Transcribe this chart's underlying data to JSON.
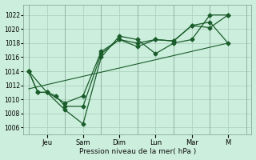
{
  "xlabel": "Pression niveau de la mer( hPa )",
  "bg_color": "#cceedd",
  "line_color": "#1a5c2a",
  "grid_color": "#aaccbb",
  "vline_color": "#8aaa99",
  "ylim": [
    1005,
    1023.5
  ],
  "yticks": [
    1006,
    1008,
    1010,
    1012,
    1014,
    1016,
    1018,
    1020,
    1022
  ],
  "day_labels": [
    "Jeu",
    "Sam",
    "Dim",
    "Lun",
    "Mar",
    "M"
  ],
  "day_positions": [
    1.0,
    3.0,
    5.0,
    7.0,
    9.0,
    11.0
  ],
  "vline_positions": [
    0.0,
    2.0,
    4.0,
    6.0,
    8.0,
    10.0,
    12.0
  ],
  "xlim": [
    -0.3,
    12.3
  ],
  "line1_x": [
    0,
    0.5,
    1,
    1.5,
    2,
    3,
    4,
    5,
    6,
    7,
    8,
    9,
    10,
    11
  ],
  "line1_y": [
    1014,
    1011,
    1011,
    1010.5,
    1009,
    1009,
    1016.5,
    1018.5,
    1017.5,
    1018.5,
    1018.3,
    1020.5,
    1021,
    1018
  ],
  "line2_x": [
    0,
    0.5,
    1,
    2,
    3,
    4,
    5,
    6,
    7,
    8,
    9,
    10,
    11
  ],
  "line2_y": [
    1014,
    1011,
    1011,
    1008.5,
    1006.5,
    1016,
    1019,
    1018.5,
    1016.5,
    1018,
    1018.5,
    1022,
    1022
  ],
  "line3_x": [
    0,
    1,
    2,
    3,
    4,
    5,
    6,
    7,
    8,
    9,
    10,
    11
  ],
  "line3_y": [
    1014,
    1011,
    1009.5,
    1010.5,
    1016.8,
    1018.5,
    1018,
    1018.5,
    1018.3,
    1020.5,
    1020.2,
    1022
  ],
  "trend_x": [
    0,
    11
  ],
  "trend_y": [
    1011.5,
    1018
  ]
}
